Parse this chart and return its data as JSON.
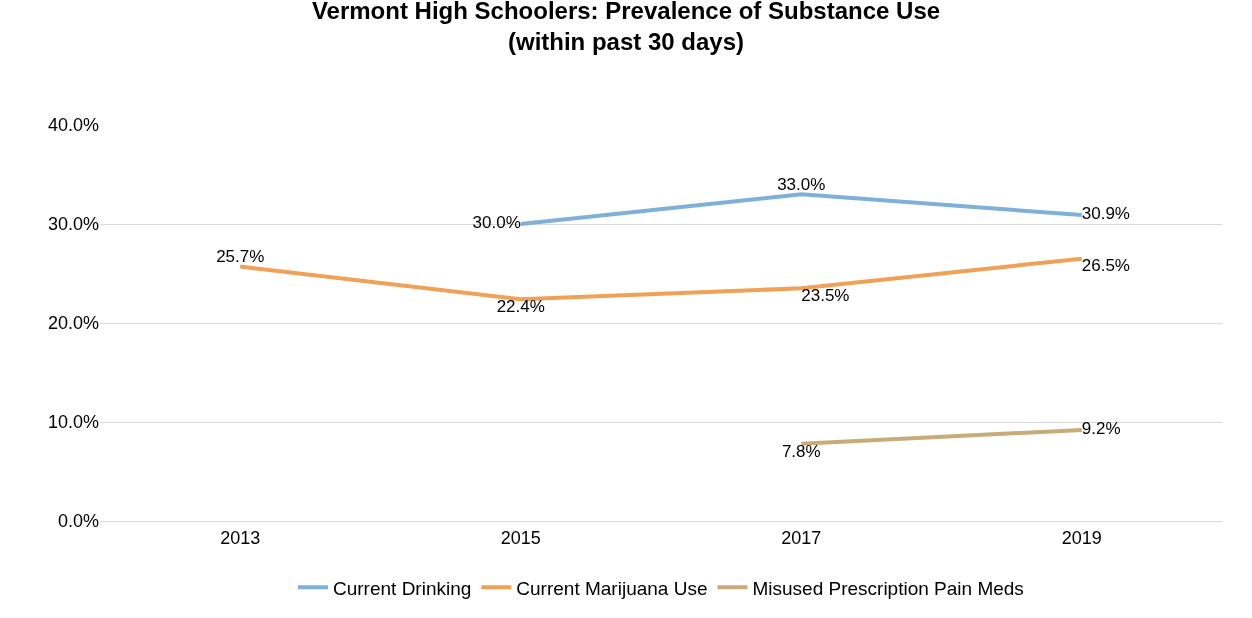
{
  "chart_data": {
    "type": "line",
    "title": "Vermont High Schoolers: Prevalence of Substance Use\n(within past 30 days)",
    "categories": [
      "2013",
      "2015",
      "2017",
      "2019"
    ],
    "series": [
      {
        "name": "Current Drinking",
        "color": "#7eb0d9",
        "values": [
          null,
          30.0,
          33.0,
          30.9
        ],
        "value_labels": [
          null,
          "30.0%",
          "33.0%",
          "30.9%"
        ]
      },
      {
        "name": "Current Marijuana Use",
        "color": "#f0a155",
        "values": [
          25.7,
          22.4,
          23.5,
          26.5
        ],
        "value_labels": [
          "25.7%",
          "22.4%",
          "23.5%",
          "26.5%"
        ]
      },
      {
        "name": "Misused Prescription Pain Meds",
        "color": "#c8ab78",
        "values": [
          null,
          null,
          7.8,
          9.2
        ],
        "value_labels": [
          null,
          null,
          "7.8%",
          "9.2%"
        ]
      }
    ],
    "ylim": [
      0,
      40
    ],
    "yticks": [
      {
        "value": 0,
        "label": "0.0%"
      },
      {
        "value": 10,
        "label": "10.0%"
      },
      {
        "value": 20,
        "label": "20.0%"
      },
      {
        "value": 30,
        "label": "30.0%"
      },
      {
        "value": 40,
        "label": "40.0%"
      }
    ],
    "grid": "y",
    "legend": "bottom",
    "marker": "none",
    "line_style": "solid"
  }
}
